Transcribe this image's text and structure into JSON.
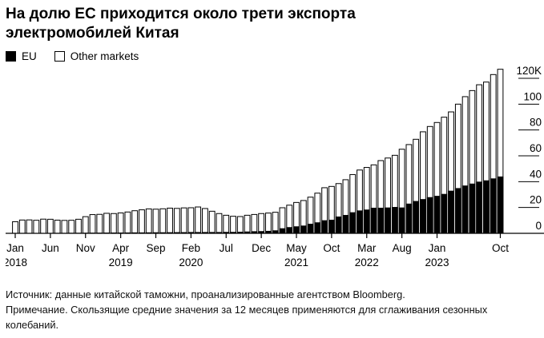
{
  "page": {
    "title_line1": "На долю ЕС приходится около трети экспорта",
    "title_line2": "электромобилей Китая"
  },
  "legend": {
    "eu_label": "EU",
    "other_label": "Other markets"
  },
  "footer": {
    "source": "Источник: данные китайской таможни, проанализированные агентством Bloomberg.",
    "note": "Примечание. Скользящие средние значения за 12 месяцев применяются для сглаживания сезонных колебаний."
  },
  "colors": {
    "eu_fill": "#000000",
    "other_fill": "#ffffff",
    "bar_stroke": "#000000",
    "axis": "#000000",
    "text": "#000000"
  },
  "chart_data": {
    "type": "bar",
    "stacked": true,
    "title": "На долю ЕС приходится около трети экспорта электромобилей Китая",
    "x_start": "Jan 2018",
    "x_end": "Oct 2023",
    "frequency": "monthly",
    "n_points": 70,
    "unit": "thousand vehicles (12-month moving average)",
    "ylim": [
      0,
      120
    ],
    "grid": "right-side tick marks only",
    "legend_position": "top-left",
    "y_axis": {
      "ticks": [
        {
          "v": 0,
          "label": "0"
        },
        {
          "v": 20,
          "label": "20"
        },
        {
          "v": 40,
          "label": "40"
        },
        {
          "v": 60,
          "label": "60"
        },
        {
          "v": 80,
          "label": "80"
        },
        {
          "v": 100,
          "label": "100"
        },
        {
          "v": 120,
          "label": "120K"
        }
      ]
    },
    "x_axis": {
      "ticks": [
        {
          "i": 0,
          "month": "Jan",
          "year": "2018"
        },
        {
          "i": 5,
          "month": "Jun",
          "year": ""
        },
        {
          "i": 10,
          "month": "Nov",
          "year": ""
        },
        {
          "i": 15,
          "month": "Apr",
          "year": "2019"
        },
        {
          "i": 20,
          "month": "Sep",
          "year": ""
        },
        {
          "i": 25,
          "month": "Feb",
          "year": "2020"
        },
        {
          "i": 30,
          "month": "Jul",
          "year": ""
        },
        {
          "i": 35,
          "month": "Dec",
          "year": ""
        },
        {
          "i": 40,
          "month": "May",
          "year": "2021"
        },
        {
          "i": 45,
          "month": "Oct",
          "year": ""
        },
        {
          "i": 50,
          "month": "Mar",
          "year": "2022"
        },
        {
          "i": 55,
          "month": "Aug",
          "year": ""
        },
        {
          "i": 60,
          "month": "Jan",
          "year": "2023"
        },
        {
          "i": 69,
          "month": "Oct",
          "year": ""
        }
      ]
    },
    "series": [
      {
        "name": "EU",
        "values": [
          0.2,
          0.25,
          0.3,
          0.3,
          0.3,
          0.3,
          0.35,
          0.35,
          0.4,
          0.4,
          0.45,
          0.5,
          0.5,
          0.55,
          0.6,
          0.6,
          0.65,
          0.7,
          0.7,
          0.75,
          0.8,
          0.8,
          0.85,
          0.9,
          0.9,
          1.0,
          1.0,
          1.0,
          1.0,
          1.0,
          1.1,
          1.1,
          1.2,
          1.4,
          1.6,
          1.7,
          1.9,
          2.3,
          3.9,
          4.8,
          5.4,
          6.0,
          7.4,
          8.5,
          10.1,
          10.5,
          13.0,
          14.2,
          16.3,
          17.7,
          18.4,
          19.8,
          19.8,
          20.0,
          20.4,
          20.0,
          23.0,
          25.0,
          26.5,
          28.0,
          29.0,
          30.5,
          33.0,
          35.0,
          37.0,
          38.5,
          40.0,
          41.0,
          42.5,
          44.0
        ]
      },
      {
        "name": "Other markets",
        "values": [
          8.8,
          10.05,
          10.1,
          9.8,
          10.7,
          10.6,
          9.85,
          9.65,
          9.7,
          10.5,
          12.45,
          14.0,
          14.2,
          14.95,
          14.7,
          15.2,
          15.85,
          16.8,
          17.5,
          18.15,
          17.9,
          18.2,
          18.65,
          18.4,
          18.8,
          18.8,
          19.4,
          18.2,
          16.1,
          14.3,
          12.9,
          12.1,
          11.8,
          12.6,
          13.0,
          13.6,
          13.8,
          14.0,
          15.9,
          17.0,
          18.5,
          19.4,
          20.6,
          22.6,
          25.2,
          25.8,
          25.5,
          27.3,
          29.2,
          31.3,
          32.6,
          33.2,
          36.5,
          38.3,
          40.0,
          45.1,
          45.7,
          47.8,
          52.1,
          54.7,
          56.8,
          59.4,
          61.0,
          65.0,
          68.8,
          72.0,
          75.0,
          76.1,
          80.4,
          83.0
        ]
      }
    ]
  }
}
